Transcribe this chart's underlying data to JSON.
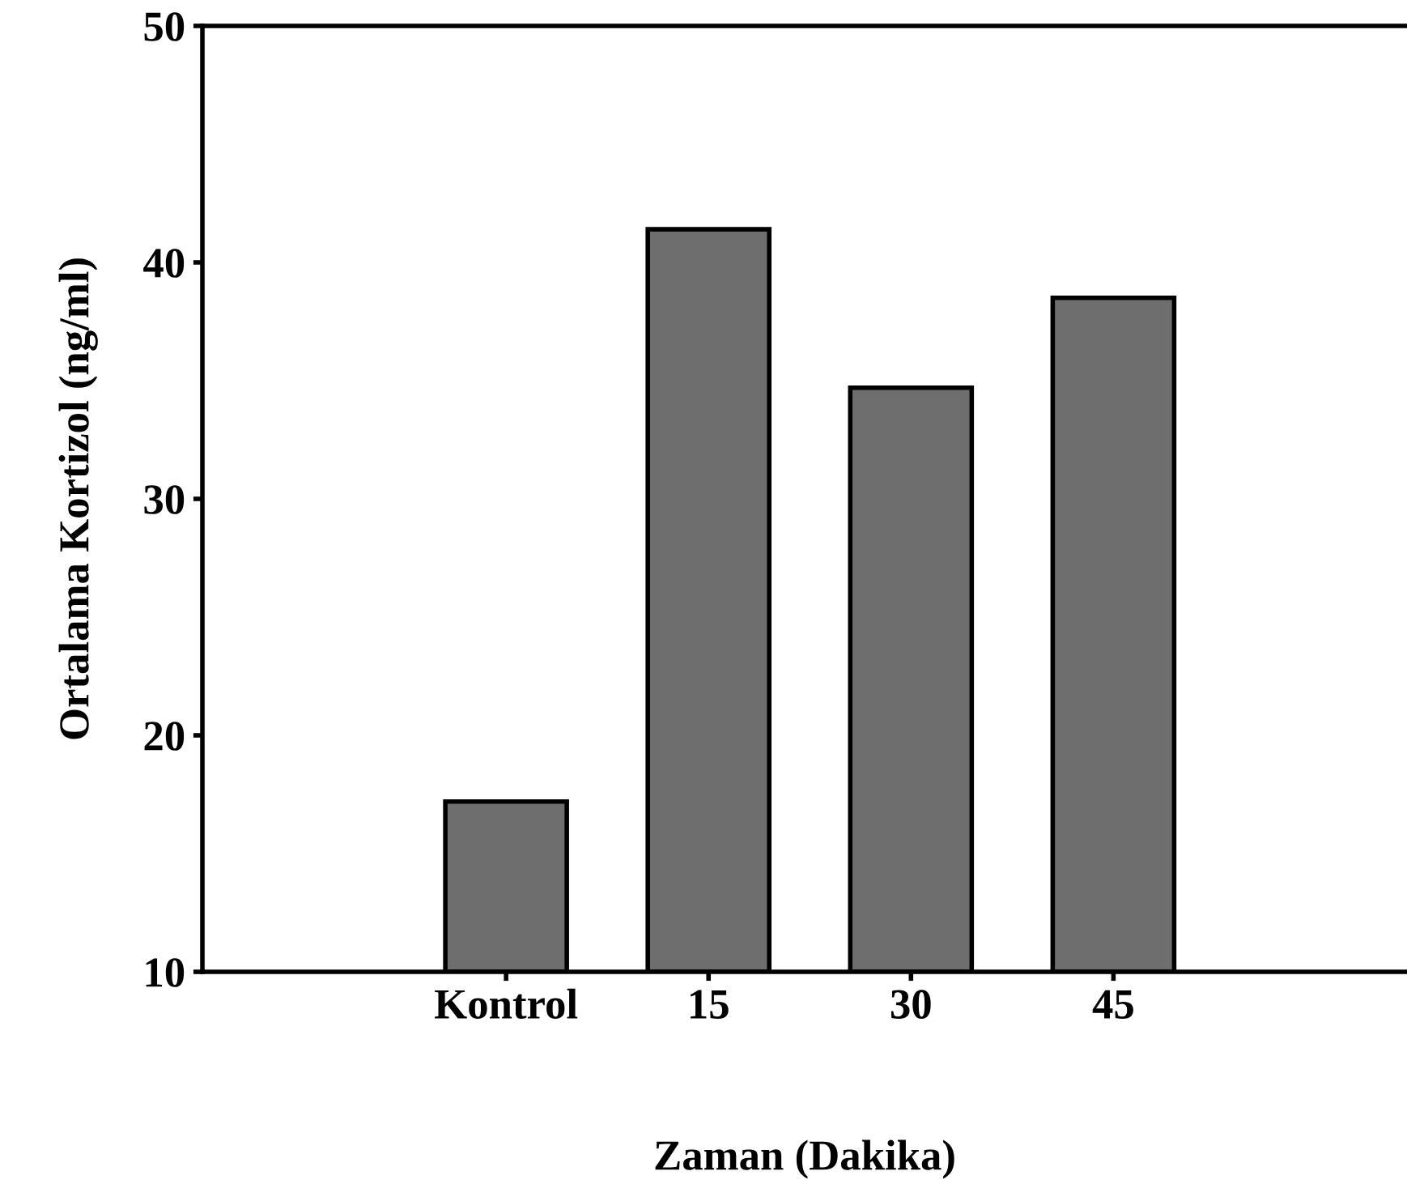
{
  "chart_data": {
    "type": "bar",
    "xlabel": "Zaman (Dakika)",
    "ylabel": "Ortalama Kortizol (ng/ml)",
    "categories": [
      "Kontrol",
      "15",
      "30",
      "45"
    ],
    "values": [
      17.2,
      41.4,
      34.7,
      38.5
    ],
    "color": "#6e6e6e",
    "ylim": [
      10,
      50
    ],
    "yticks": [
      10,
      20,
      30,
      40,
      50
    ],
    "grid": false,
    "legend": false
  }
}
